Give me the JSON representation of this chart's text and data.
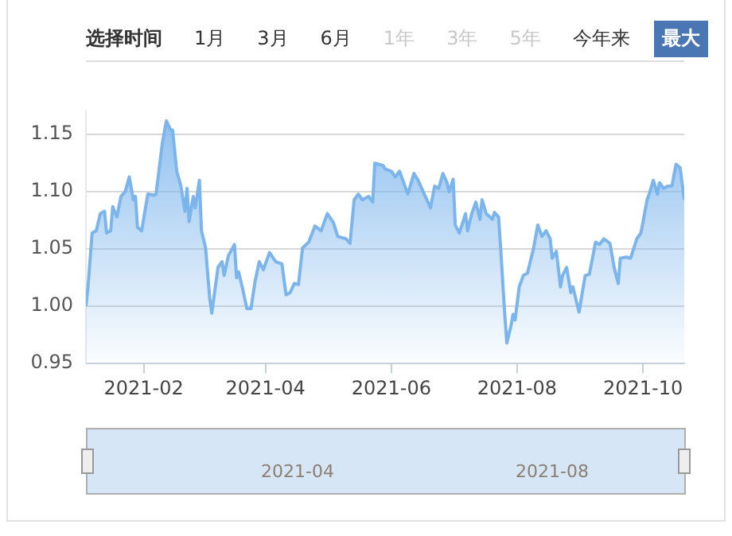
{
  "chart_data": {
    "type": "area",
    "annotations": [
      "选择时间",
      "1月",
      "3月",
      "6月",
      "1年",
      "3年",
      "5年",
      "今年来",
      "最大",
      "2021-04",
      "2021-08"
    ],
    "x": [
      "2021-01-04",
      "2021-01-05",
      "2021-01-07",
      "2021-01-09",
      "2021-01-11",
      "2021-01-13",
      "2021-01-14",
      "2021-01-16",
      "2021-01-17",
      "2021-01-19",
      "2021-01-21",
      "2021-01-23",
      "2021-01-25",
      "2021-01-27",
      "2021-01-28",
      "2021-01-29",
      "2021-01-31",
      "2021-02-03",
      "2021-02-06",
      "2021-02-07",
      "2021-02-10",
      "2021-02-12",
      "2021-02-14",
      "2021-02-15",
      "2021-02-17",
      "2021-02-19",
      "2021-02-21",
      "2021-02-22",
      "2021-02-23",
      "2021-02-25",
      "2021-02-26",
      "2021-02-28",
      "2021-03-01",
      "2021-03-03",
      "2021-03-05",
      "2021-03-06",
      "2021-03-09",
      "2021-03-11",
      "2021-03-12",
      "2021-03-14",
      "2021-03-17",
      "2021-03-18",
      "2021-03-19",
      "2021-03-21",
      "2021-03-23",
      "2021-03-25",
      "2021-03-27",
      "2021-03-29",
      "2021-03-31",
      "2021-04-03",
      "2021-04-06",
      "2021-04-09",
      "2021-04-11",
      "2021-04-13",
      "2021-04-15",
      "2021-04-17",
      "2021-04-19",
      "2021-04-22",
      "2021-04-25",
      "2021-04-28",
      "2021-05-01",
      "2021-05-04",
      "2021-05-06",
      "2021-05-10",
      "2021-05-12",
      "2021-05-14",
      "2021-05-16",
      "2021-05-18",
      "2021-05-21",
      "2021-05-23",
      "2021-05-24",
      "2021-05-28",
      "2021-05-29",
      "2021-06-01",
      "2021-06-03",
      "2021-06-05",
      "2021-06-09",
      "2021-06-12",
      "2021-06-14",
      "2021-06-17",
      "2021-06-20",
      "2021-06-22",
      "2021-06-24",
      "2021-06-26",
      "2021-06-28",
      "2021-06-29",
      "2021-07-01",
      "2021-07-02",
      "2021-07-04",
      "2021-07-07",
      "2021-07-08",
      "2021-07-10",
      "2021-07-12",
      "2021-07-14",
      "2021-07-15",
      "2021-07-17",
      "2021-07-20",
      "2021-07-21",
      "2021-07-23",
      "2021-07-24",
      "2021-07-26",
      "2021-07-27",
      "2021-07-29",
      "2021-07-30",
      "2021-07-31",
      "2021-08-02",
      "2021-08-04",
      "2021-08-06",
      "2021-08-09",
      "2021-08-11",
      "2021-08-13",
      "2021-08-15",
      "2021-08-17",
      "2021-08-18",
      "2021-08-20",
      "2021-08-22",
      "2021-08-23",
      "2021-08-25",
      "2021-08-27",
      "2021-08-28",
      "2021-08-31",
      "2021-09-03",
      "2021-09-05",
      "2021-09-08",
      "2021-09-10",
      "2021-09-12",
      "2021-09-15",
      "2021-09-17",
      "2021-09-19",
      "2021-09-20",
      "2021-09-23",
      "2021-09-25",
      "2021-09-28",
      "2021-09-30",
      "2021-10-03",
      "2021-10-04",
      "2021-10-06",
      "2021-10-08",
      "2021-10-09",
      "2021-10-11",
      "2021-10-13",
      "2021-10-15",
      "2021-10-17",
      "2021-10-19",
      "2021-10-21"
    ],
    "series": [
      {
        "color": "#7cb5ec",
        "values": [
          1.0,
          1.017,
          1.064,
          1.066,
          1.081,
          1.083,
          1.064,
          1.066,
          1.087,
          1.078,
          1.096,
          1.1,
          1.113,
          1.093,
          1.096,
          1.069,
          1.066,
          1.098,
          1.097,
          1.098,
          1.142,
          1.162,
          1.154,
          1.154,
          1.118,
          1.105,
          1.083,
          1.103,
          1.074,
          1.096,
          1.086,
          1.11,
          1.066,
          1.051,
          1.007,
          0.994,
          1.034,
          1.039,
          1.027,
          1.044,
          1.054,
          1.025,
          1.03,
          1.015,
          0.998,
          0.998,
          1.022,
          1.039,
          1.032,
          1.047,
          1.039,
          1.037,
          1.01,
          1.012,
          1.02,
          1.019,
          1.051,
          1.056,
          1.07,
          1.066,
          1.081,
          1.073,
          1.061,
          1.059,
          1.055,
          1.093,
          1.098,
          1.093,
          1.096,
          1.091,
          1.125,
          1.123,
          1.12,
          1.118,
          1.113,
          1.118,
          1.098,
          1.116,
          1.11,
          1.098,
          1.086,
          1.105,
          1.103,
          1.116,
          1.108,
          1.1,
          1.111,
          1.071,
          1.064,
          1.081,
          1.066,
          1.081,
          1.091,
          1.076,
          1.093,
          1.081,
          1.076,
          1.082,
          1.078,
          1.051,
          0.993,
          0.968,
          0.983,
          0.993,
          0.988,
          1.017,
          1.027,
          1.029,
          1.051,
          1.071,
          1.061,
          1.066,
          1.059,
          1.042,
          1.048,
          1.017,
          1.027,
          1.034,
          1.012,
          1.017,
          0.995,
          1.027,
          1.028,
          1.056,
          1.054,
          1.059,
          1.055,
          1.034,
          1.02,
          1.042,
          1.043,
          1.042,
          1.059,
          1.064,
          1.093,
          1.098,
          1.11,
          1.098,
          1.108,
          1.103,
          1.105,
          1.105,
          1.124,
          1.121,
          1.093
        ]
      }
    ],
    "xlim": [
      "2021-01-04",
      "2021-10-21"
    ],
    "xticks": [
      "2021-02",
      "2021-04",
      "2021-06",
      "2021-08",
      "2021-10"
    ],
    "ylim": [
      0.95,
      1.17
    ],
    "yticks": [
      0.95,
      {
        "value": 1.0,
        "label": "1.00"
      },
      1.05,
      {
        "value": 1.1,
        "label": "1.10"
      },
      1.15
    ],
    "grid": "y",
    "legend": false,
    "marker": "none",
    "line_style": "solid"
  }
}
